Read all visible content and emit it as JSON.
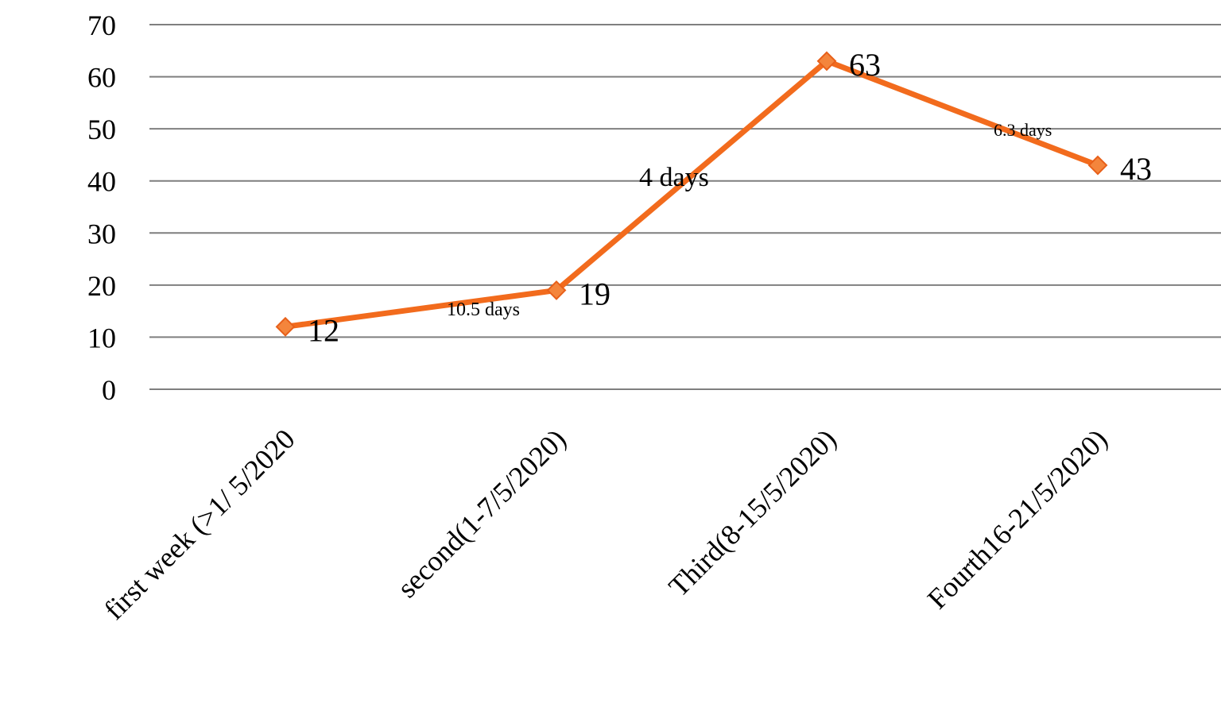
{
  "chart_data": {
    "type": "line",
    "categories": [
      "first week (>1/ 5/2020",
      "second(1-7/5/2020)",
      "Third(8-15/5/2020)",
      "Fourth16-21/5/2020)"
    ],
    "series": [
      {
        "values": [
          12,
          19,
          63,
          43
        ],
        "color": "#f26b1d",
        "marker": "diamond"
      }
    ],
    "data_labels": [
      "12",
      "19",
      "63",
      "43"
    ],
    "annotations": [
      {
        "text": "10.5 days",
        "segment": [
          0,
          1
        ]
      },
      {
        "text": "4 days",
        "segment": [
          1,
          2
        ]
      },
      {
        "text": "6.3 days",
        "segment": [
          2,
          3
        ]
      }
    ],
    "yticks": [
      "0",
      "10",
      "20",
      "30",
      "40",
      "50",
      "60",
      "70"
    ],
    "ylim": [
      0,
      70
    ],
    "grid": true,
    "legend": "none",
    "title": "",
    "xlabel": "",
    "ylabel": ""
  }
}
